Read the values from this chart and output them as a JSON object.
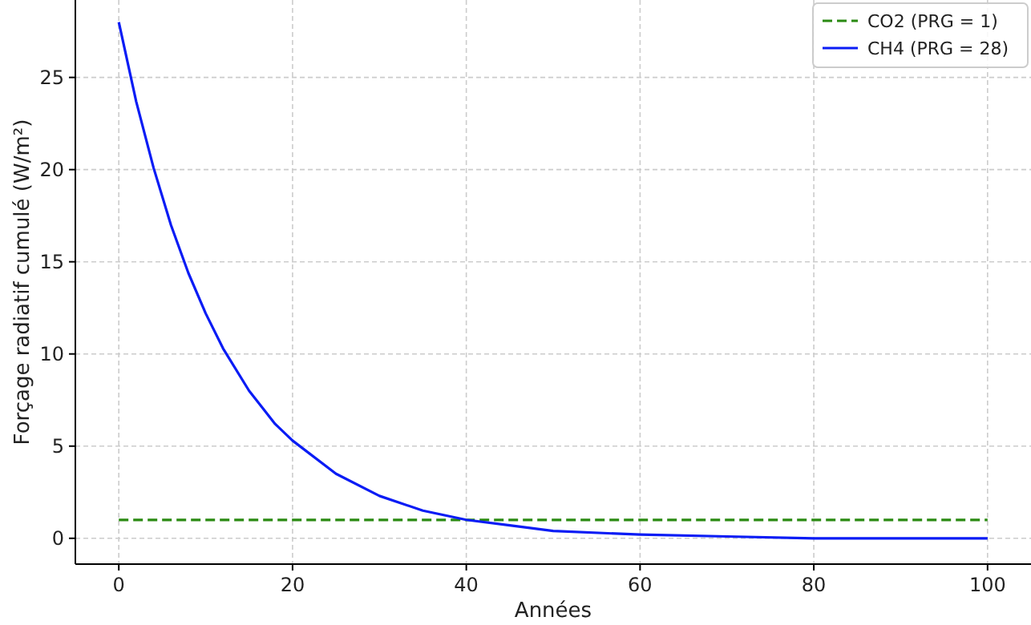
{
  "chart_data": {
    "type": "line",
    "xlabel": "Années",
    "ylabel": "Forçage radiatif cumulé (W/m²)",
    "xlim": [
      -5,
      105
    ],
    "ylim": [
      -1.4,
      29.2
    ],
    "xticks": [
      0,
      20,
      40,
      60,
      80,
      100
    ],
    "yticks": [
      0,
      5,
      10,
      15,
      20,
      25
    ],
    "grid": true,
    "legend": "top right",
    "series": [
      {
        "name": "CO2 (PRG = 1)",
        "color": "#2a8a12",
        "line_style": "dashed",
        "x": [
          0,
          100
        ],
        "values": [
          1,
          1
        ]
      },
      {
        "name": "CH4 (PRG = 28)",
        "color": "#0a1cf5",
        "line_style": "solid",
        "x": [
          0,
          2,
          4,
          6,
          8,
          10,
          12,
          15,
          18,
          20,
          25,
          30,
          35,
          40,
          45,
          50,
          60,
          70,
          80,
          90,
          100
        ],
        "values": [
          28,
          23.7,
          20.1,
          17,
          14.4,
          12.2,
          10.3,
          8,
          6.2,
          5.3,
          3.5,
          2.3,
          1.5,
          1,
          0.7,
          0.4,
          0.2,
          0.1,
          0,
          0,
          0
        ]
      }
    ]
  }
}
